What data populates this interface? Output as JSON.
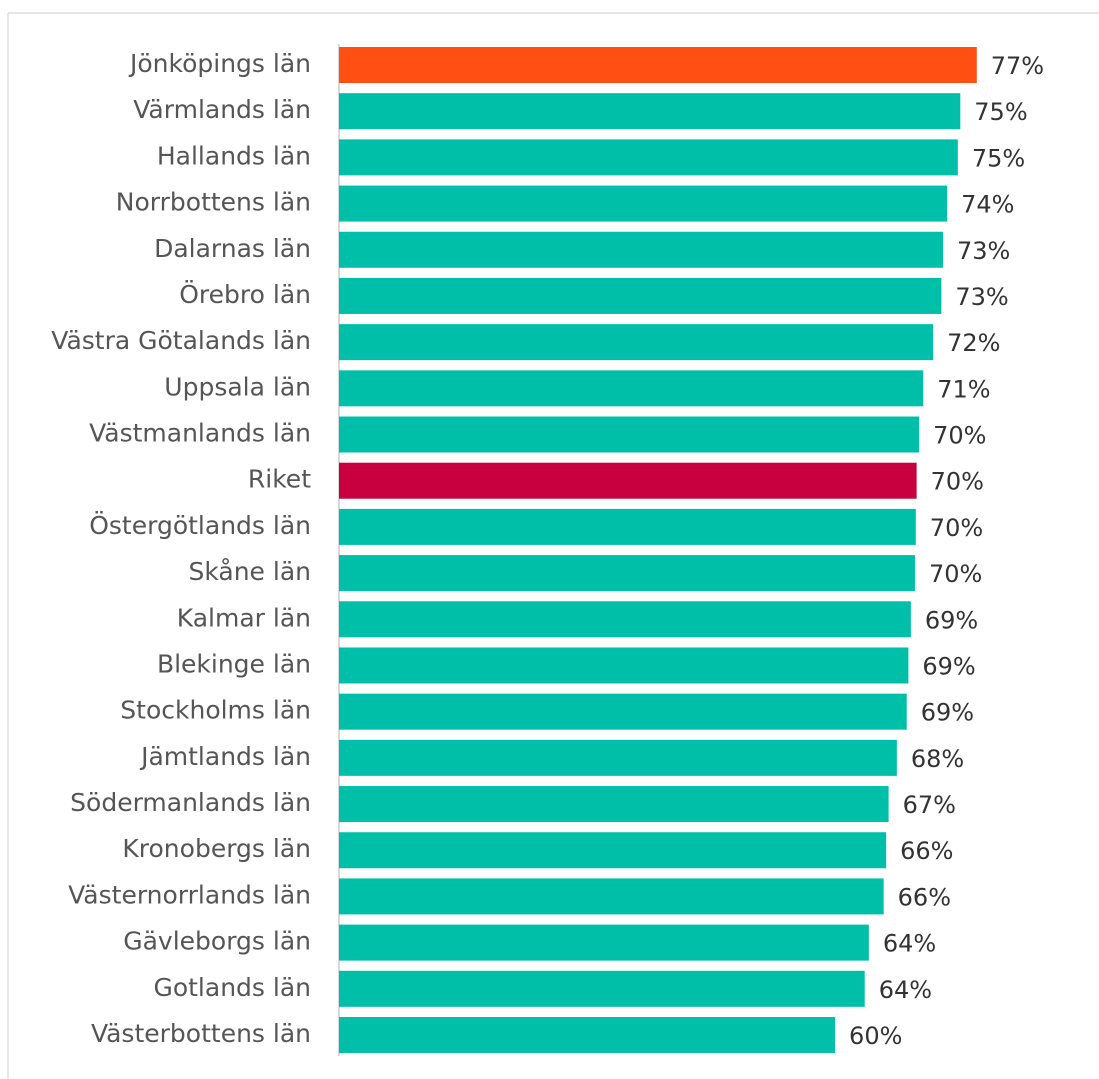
{
  "chart_data": {
    "type": "bar",
    "orientation": "horizontal",
    "categories": [
      "Jönköpings län",
      "Värmlands län",
      "Hallands län",
      "Norrbottens län",
      "Dalarnas län",
      "Örebro län",
      "Västra Götalands län",
      "Uppsala län",
      "Västmanlands län",
      "Riket",
      "Östergötlands län",
      "Skåne län",
      "Kalmar län",
      "Blekinge län",
      "Stockholms län",
      "Jämtlands län",
      "Södermanlands län",
      "Kronobergs län",
      "Västernorrlands län",
      "Gävleborgs län",
      "Gotlands län",
      "Västerbottens län"
    ],
    "values": [
      77.4,
      75.4,
      75.1,
      73.8,
      73.3,
      73.1,
      72.1,
      70.9,
      70.4,
      70.1,
      70.0,
      69.9,
      69.4,
      69.1,
      68.9,
      67.7,
      66.7,
      66.4,
      66.1,
      64.3,
      63.8,
      60.2
    ],
    "value_labels": [
      "77%",
      "75%",
      "75%",
      "74%",
      "73%",
      "73%",
      "72%",
      "71%",
      "70%",
      "70%",
      "70%",
      "70%",
      "69%",
      "69%",
      "69%",
      "68%",
      "67%",
      "66%",
      "66%",
      "64%",
      "64%",
      "60%"
    ],
    "colors": [
      "#ff4f12",
      "#00bfa8",
      "#00bfa8",
      "#00bfa8",
      "#00bfa8",
      "#00bfa8",
      "#00bfa8",
      "#00bfa8",
      "#00bfa8",
      "#c8003f",
      "#00bfa8",
      "#00bfa8",
      "#00bfa8",
      "#00bfa8",
      "#00bfa8",
      "#00bfa8",
      "#00bfa8",
      "#00bfa8",
      "#00bfa8",
      "#00bfa8",
      "#00bfa8",
      "#00bfa8"
    ]
  }
}
